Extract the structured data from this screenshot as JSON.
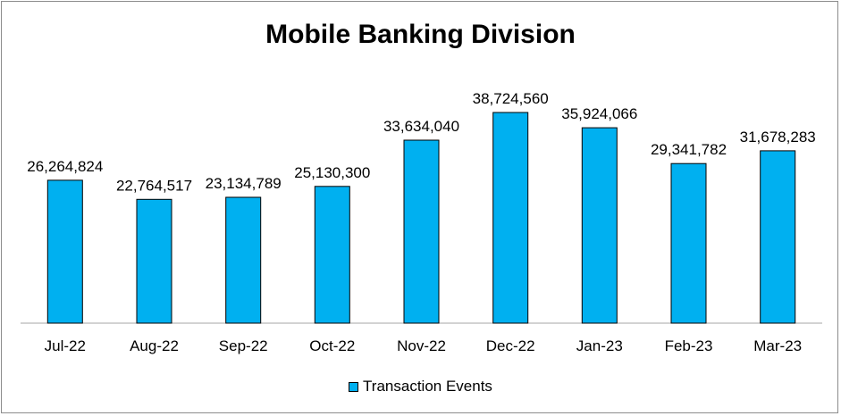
{
  "chart_data": {
    "type": "bar",
    "title": "Mobile Banking Division",
    "xlabel": "",
    "ylabel": "",
    "categories": [
      "Jul-22",
      "Aug-22",
      "Sep-22",
      "Oct-22",
      "Nov-22",
      "Dec-22",
      "Jan-23",
      "Feb-23",
      "Mar-23"
    ],
    "series": [
      {
        "name": "Transaction Events",
        "values": [
          26264824,
          22764517,
          23134789,
          25130300,
          33634040,
          38724560,
          35924066,
          29341782,
          31678283
        ],
        "labels": [
          "26,264,824",
          "22,764,517",
          "23,134,789",
          "25,130,300",
          "33,634,040",
          "38,724,560",
          "35,924,066",
          "29,341,782",
          "31,678,283"
        ],
        "color": "#00b0f0"
      }
    ],
    "ylim": [
      0,
      40000000
    ],
    "grid": false,
    "legend_position": "bottom"
  }
}
